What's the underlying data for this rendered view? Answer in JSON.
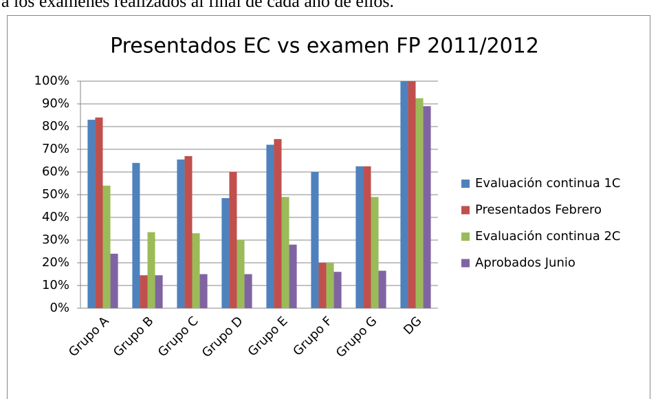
{
  "caption": "a los exámenes realizados al final de cada año de ellos.",
  "chart_data": {
    "type": "bar",
    "title": "Presentados EC vs examen FP 2011/2012",
    "categories": [
      "Grupo A",
      "Grupo B",
      "Grupo C",
      "Grupo D",
      "Grupo E",
      "Grupo F",
      "Grupo G",
      "DG"
    ],
    "series": [
      {
        "name": "Evaluación continua 1C",
        "color": "#4f81bd",
        "values": [
          83,
          64,
          65.5,
          48.5,
          72,
          60,
          62.5,
          100
        ]
      },
      {
        "name": "Presentados Febrero",
        "color": "#c0504d",
        "values": [
          84,
          14.5,
          67,
          60,
          74.5,
          20,
          62.5,
          100
        ]
      },
      {
        "name": "Evaluación continua 2C",
        "color": "#9bbb59",
        "values": [
          54,
          33.5,
          33,
          30,
          49,
          20,
          49,
          92.5
        ]
      },
      {
        "name": "Aprobados Junio",
        "color": "#8064a2",
        "values": [
          24,
          14.5,
          15,
          15,
          28,
          16,
          16.5,
          89
        ]
      }
    ],
    "ylim": [
      0,
      100
    ],
    "yticks": [
      {
        "value": 0,
        "label": "0%"
      },
      {
        "value": 10,
        "label": "10%"
      },
      {
        "value": 20,
        "label": "20%"
      },
      {
        "value": 30,
        "label": "30%"
      },
      {
        "value": 40,
        "label": "40%"
      },
      {
        "value": 50,
        "label": "50%"
      },
      {
        "value": 60,
        "label": "60%"
      },
      {
        "value": 70,
        "label": "70%"
      },
      {
        "value": 80,
        "label": "80%"
      },
      {
        "value": 90,
        "label": "90%"
      },
      {
        "value": 100,
        "label": "100%"
      }
    ],
    "grid": true,
    "legend": "right"
  }
}
